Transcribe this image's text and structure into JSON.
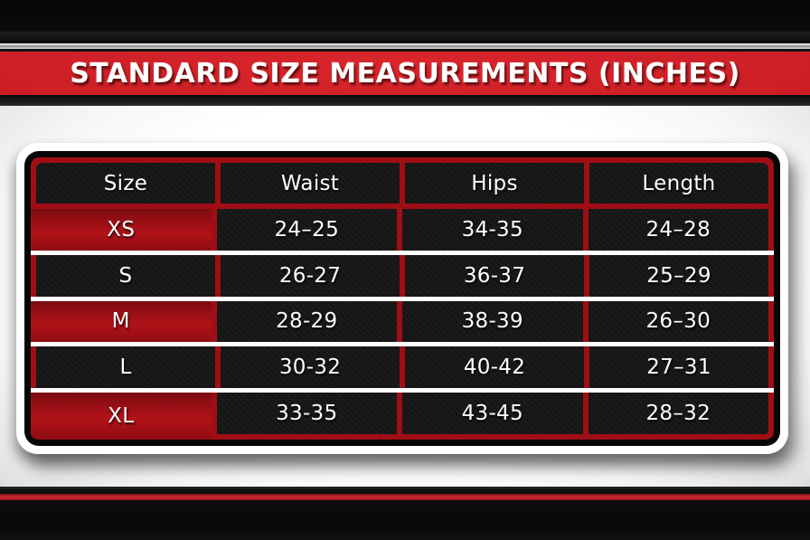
{
  "banner": {
    "title": "STANDARD SIZE MEASUREMENTS (INCHES)",
    "bg_color": "#c91d24",
    "text_color": "#ffffff"
  },
  "table": {
    "header": [
      "Size",
      "Waist",
      "Hips",
      "Length"
    ],
    "rows": [
      {
        "size": "XS",
        "waist": "24–25",
        "hips": "34-35",
        "length": "24–28",
        "highlighted": true
      },
      {
        "size": "S",
        "waist": "26-27",
        "hips": "36-37",
        "length": "25–29",
        "highlighted": false
      },
      {
        "size": "M",
        "waist": "28-29",
        "hips": "38-39",
        "length": "26–30",
        "highlighted": true
      },
      {
        "size": "L",
        "waist": "30-32",
        "hips": "40-42",
        "length": "27–31",
        "highlighted": false
      },
      {
        "size": "XL",
        "waist": "33-35",
        "hips": "43-45",
        "length": "28–32",
        "highlighted": true
      }
    ],
    "colors": {
      "border_red": "#a00e15",
      "highlight_red": "#b01218",
      "cell_black": "#151515",
      "separator_white": "#ffffff",
      "text": "#ffffff"
    }
  },
  "chart_data": {
    "type": "table",
    "title": "STANDARD SIZE MEASUREMENTS (INCHES)",
    "units": "inches",
    "columns": [
      "Size",
      "Waist",
      "Hips",
      "Length"
    ],
    "rows": [
      [
        "XS",
        "24–25",
        "34-35",
        "24–28"
      ],
      [
        "S",
        "26-27",
        "36-37",
        "25–29"
      ],
      [
        "M",
        "28-29",
        "38-39",
        "26–30"
      ],
      [
        "L",
        "30-32",
        "40-42",
        "27–31"
      ],
      [
        "XL",
        "33-35",
        "43-45",
        "28–32"
      ]
    ],
    "highlighted_rows": [
      "XS",
      "M",
      "XL"
    ],
    "legend_position": "none",
    "grid": "red-borders-with-white-row-separators"
  }
}
